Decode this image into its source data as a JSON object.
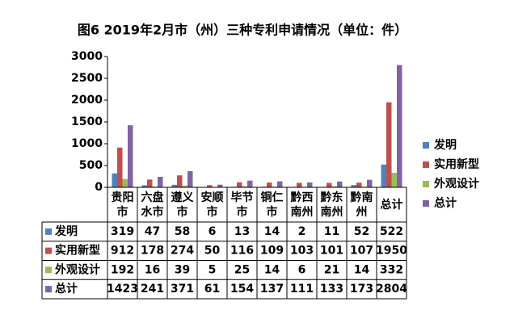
{
  "chart_data": {
    "type": "bar",
    "title": "图6 2019年2月市（州）三种专利申请情况（单位：件）",
    "categories": [
      "贵阳市",
      "六盘水市",
      "遵义市",
      "安顺市",
      "毕节市",
      "铜仁市",
      "黔西南州",
      "黔东南州",
      "黔南州",
      "总计"
    ],
    "series": [
      {
        "name": "发明",
        "color": "#4f81bd",
        "values": [
          319,
          47,
          58,
          6,
          13,
          14,
          2,
          11,
          52,
          522
        ]
      },
      {
        "name": "实用新型",
        "color": "#c0504d",
        "values": [
          912,
          178,
          274,
          50,
          116,
          109,
          103,
          101,
          107,
          1950
        ]
      },
      {
        "name": "外观设计",
        "color": "#9bbb59",
        "values": [
          192,
          16,
          39,
          5,
          25,
          14,
          6,
          21,
          14,
          332
        ]
      },
      {
        "name": "总计",
        "color": "#8064a2",
        "values": [
          1423,
          241,
          371,
          61,
          154,
          137,
          111,
          133,
          173,
          2804
        ]
      }
    ],
    "ylim": [
      0,
      3000
    ],
    "yticks": [
      0,
      500,
      1000,
      1500,
      2000,
      2500,
      3000
    ],
    "legend": "right",
    "data_table": true
  }
}
